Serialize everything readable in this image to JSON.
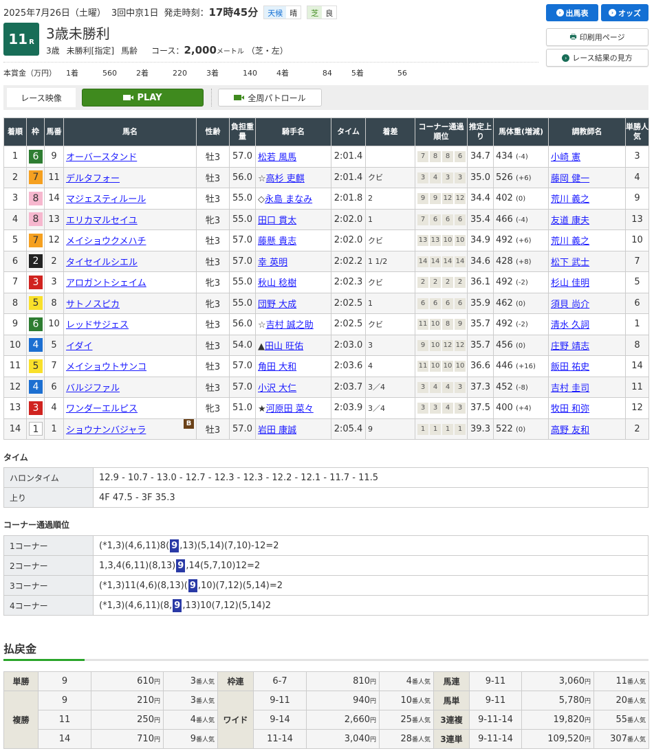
{
  "header": {
    "date": "2025年7月26日（土曜）",
    "meeting": "3回中京1日",
    "start_label": "発走時刻：",
    "start_time": "17時45分",
    "weather_label": "天候",
    "weather": "晴",
    "track_label": "芝",
    "track_cond": "良",
    "race_no": "11",
    "race_suffix": "R",
    "title": "3歳未勝利",
    "age": "3歳",
    "cond": "未勝利[指定]",
    "weight_rule": "馬齢",
    "course_label": "コース：",
    "distance": "2,000",
    "unit": "メートル",
    "course_detail": "（芝・左）"
  },
  "prize": {
    "label": "本賞金（万円）",
    "items": [
      {
        "place": "1着",
        "amount": "560"
      },
      {
        "place": "2着",
        "amount": "220"
      },
      {
        "place": "3着",
        "amount": "140"
      },
      {
        "place": "4着",
        "amount": "84"
      },
      {
        "place": "5着",
        "amount": "56"
      }
    ]
  },
  "buttons": {
    "entries": "出馬表",
    "odds": "オッズ",
    "print": "印刷用ページ",
    "howto": "レース結果の見方"
  },
  "video": {
    "label": "レース映像",
    "play": "PLAY",
    "patrol": "全周パトロール"
  },
  "frame_colors": {
    "1": [
      "#ffffff",
      "#333"
    ],
    "2": [
      "#222222",
      "#fff"
    ],
    "3": [
      "#d0231f",
      "#fff"
    ],
    "4": [
      "#1c6fd1",
      "#fff"
    ],
    "5": [
      "#f9e02a",
      "#333"
    ],
    "6": [
      "#2e7d32",
      "#fff"
    ],
    "7": [
      "#f5a020",
      "#333"
    ],
    "8": [
      "#f6b7ce",
      "#333"
    ]
  },
  "results": {
    "headers": [
      "着順",
      "枠",
      "馬番",
      "馬名",
      "性齢",
      "負担重量",
      "騎手名",
      "タイム",
      "着差",
      "コーナー通過順位",
      "推定上り",
      "馬体重(増減)",
      "調教師名",
      "単勝人気"
    ],
    "rows": [
      {
        "pos": "1",
        "frame": "6",
        "num": "9",
        "horse": "オーバースタンド",
        "sexage": "牡3",
        "wt": "57.0",
        "mark": "",
        "jockey": "松若 風馬",
        "time": "2:01.4",
        "margin": "",
        "corners": [
          "7",
          "8",
          "8",
          "6"
        ],
        "last3f": "34.7",
        "bw": "434",
        "bwd": "(-4)",
        "trainer": "小崎 憲",
        "pop": "3"
      },
      {
        "pos": "2",
        "frame": "7",
        "num": "11",
        "horse": "デルタフォー",
        "sexage": "牡3",
        "wt": "56.0",
        "mark": "☆",
        "jockey": "高杉 吏麒",
        "time": "2:01.4",
        "margin": "クビ",
        "corners": [
          "3",
          "4",
          "3",
          "3"
        ],
        "last3f": "35.0",
        "bw": "526",
        "bwd": "(+6)",
        "trainer": "藤岡 健一",
        "pop": "4"
      },
      {
        "pos": "3",
        "frame": "8",
        "num": "14",
        "horse": "マジェスティルール",
        "sexage": "牡3",
        "wt": "55.0",
        "mark": "◇",
        "jockey": "永島 まなみ",
        "time": "2:01.8",
        "margin": "2",
        "corners": [
          "9",
          "9",
          "12",
          "12"
        ],
        "last3f": "34.4",
        "bw": "402",
        "bwd": "(0)",
        "trainer": "荒川 義之",
        "pop": "9"
      },
      {
        "pos": "4",
        "frame": "8",
        "num": "13",
        "horse": "エリカマルセイユ",
        "sexage": "牝3",
        "wt": "55.0",
        "mark": "",
        "jockey": "田口 貫太",
        "time": "2:02.0",
        "margin": "1",
        "corners": [
          "7",
          "6",
          "6",
          "6"
        ],
        "last3f": "35.4",
        "bw": "466",
        "bwd": "(-4)",
        "trainer": "友道 康夫",
        "pop": "13"
      },
      {
        "pos": "5",
        "frame": "7",
        "num": "12",
        "horse": "メイショウクメハチ",
        "sexage": "牡3",
        "wt": "57.0",
        "mark": "",
        "jockey": "藤懸 貴志",
        "time": "2:02.0",
        "margin": "クビ",
        "corners": [
          "13",
          "13",
          "10",
          "10"
        ],
        "last3f": "34.9",
        "bw": "492",
        "bwd": "(+6)",
        "trainer": "荒川 義之",
        "pop": "10"
      },
      {
        "pos": "6",
        "frame": "2",
        "num": "2",
        "horse": "タイセイルシエル",
        "sexage": "牡3",
        "wt": "57.0",
        "mark": "",
        "jockey": "幸 英明",
        "time": "2:02.2",
        "margin": "1 1/2",
        "corners": [
          "14",
          "14",
          "14",
          "14"
        ],
        "last3f": "34.6",
        "bw": "428",
        "bwd": "(+8)",
        "trainer": "松下 武士",
        "pop": "7"
      },
      {
        "pos": "7",
        "frame": "3",
        "num": "3",
        "horse": "アロガントシェイム",
        "sexage": "牝3",
        "wt": "55.0",
        "mark": "",
        "jockey": "秋山 稔樹",
        "time": "2:02.3",
        "margin": "クビ",
        "corners": [
          "2",
          "2",
          "2",
          "2"
        ],
        "last3f": "36.1",
        "bw": "492",
        "bwd": "(-2)",
        "trainer": "杉山 佳明",
        "pop": "5"
      },
      {
        "pos": "8",
        "frame": "5",
        "num": "8",
        "horse": "サトノスピカ",
        "sexage": "牝3",
        "wt": "55.0",
        "mark": "",
        "jockey": "団野 大成",
        "time": "2:02.5",
        "margin": "1",
        "corners": [
          "6",
          "6",
          "6",
          "6"
        ],
        "last3f": "35.9",
        "bw": "462",
        "bwd": "(0)",
        "trainer": "須貝 尚介",
        "pop": "6"
      },
      {
        "pos": "9",
        "frame": "6",
        "num": "10",
        "horse": "レッドサジェス",
        "sexage": "牡3",
        "wt": "56.0",
        "mark": "☆",
        "jockey": "吉村 誠之助",
        "time": "2:02.5",
        "margin": "クビ",
        "corners": [
          "11",
          "10",
          "8",
          "9"
        ],
        "last3f": "35.7",
        "bw": "492",
        "bwd": "(-2)",
        "trainer": "清水 久詞",
        "pop": "1"
      },
      {
        "pos": "10",
        "frame": "4",
        "num": "5",
        "horse": "イダイ",
        "sexage": "牡3",
        "wt": "54.0",
        "mark": "▲",
        "jockey": "田山 旺佑",
        "time": "2:03.0",
        "margin": "3",
        "corners": [
          "9",
          "10",
          "12",
          "12"
        ],
        "last3f": "35.7",
        "bw": "456",
        "bwd": "(0)",
        "trainer": "庄野 靖志",
        "pop": "8"
      },
      {
        "pos": "11",
        "frame": "5",
        "num": "7",
        "horse": "メイショウトサンコ",
        "sexage": "牡3",
        "wt": "57.0",
        "mark": "",
        "jockey": "角田 大和",
        "time": "2:03.6",
        "margin": "4",
        "corners": [
          "11",
          "10",
          "10",
          "10"
        ],
        "last3f": "36.6",
        "bw": "446",
        "bwd": "(+16)",
        "trainer": "飯田 祐史",
        "pop": "14"
      },
      {
        "pos": "12",
        "frame": "4",
        "num": "6",
        "horse": "バルジファル",
        "sexage": "牡3",
        "wt": "57.0",
        "mark": "",
        "jockey": "小沢 大仁",
        "time": "2:03.7",
        "margin": "3／4",
        "corners": [
          "3",
          "4",
          "4",
          "3"
        ],
        "last3f": "37.3",
        "bw": "452",
        "bwd": "(-8)",
        "trainer": "吉村 圭司",
        "pop": "11"
      },
      {
        "pos": "13",
        "frame": "3",
        "num": "4",
        "horse": "ワンダーエルピス",
        "sexage": "牝3",
        "wt": "51.0",
        "mark": "★",
        "jockey": "河原田 菜々",
        "time": "2:03.9",
        "margin": "3／4",
        "corners": [
          "3",
          "3",
          "4",
          "3"
        ],
        "last3f": "37.5",
        "bw": "400",
        "bwd": "(+4)",
        "trainer": "牧田 和弥",
        "pop": "12"
      },
      {
        "pos": "14",
        "frame": "1",
        "num": "1",
        "horse": "ショウナンバジャラ",
        "blinker": "B",
        "sexage": "牡3",
        "wt": "57.0",
        "mark": "",
        "jockey": "岩田 康誠",
        "time": "2:05.4",
        "margin": "9",
        "corners": [
          "1",
          "1",
          "1",
          "1"
        ],
        "last3f": "39.3",
        "bw": "522",
        "bwd": "(0)",
        "trainer": "高野 友和",
        "pop": "2"
      }
    ]
  },
  "time_section": {
    "heading": "タイム",
    "rows": [
      {
        "label": "ハロンタイム",
        "value": "12.9 - 10.7 - 13.0 - 12.7 - 12.3 - 12.3 - 12.2 - 12.1 - 11.7 - 11.5"
      },
      {
        "label": "上り",
        "value": "4F 47.5 - 3F 35.3"
      }
    ]
  },
  "corner_section": {
    "heading": "コーナー通過順位",
    "rows": [
      {
        "label": "1コーナー",
        "before": "(*1,3)(4,6,11)8(",
        "hl": "9",
        "after": ",13)(5,14)(7,10)-12=2"
      },
      {
        "label": "2コーナー",
        "before": "1,3,4(6,11)(8,13)",
        "hl": "9",
        "after": ",14(5,7,10)12=2"
      },
      {
        "label": "3コーナー",
        "before": "(*1,3)11(4,6)(8,13)(",
        "hl": "9",
        "after": ",10)(7,12)(5,14)=2"
      },
      {
        "label": "4コーナー",
        "before": "(*1,3)(4,6,11)(8,",
        "hl": "9",
        "after": ",13)10(7,12)(5,14)2"
      }
    ]
  },
  "payout": {
    "heading": "払戻金",
    "yen": "円",
    "pop_suffix": "番人気",
    "tansho": {
      "label": "単勝",
      "rows": [
        {
          "num": "9",
          "amount": "610",
          "pop": "3"
        }
      ]
    },
    "fukusho": {
      "label": "複勝",
      "rows": [
        {
          "num": "9",
          "amount": "210",
          "pop": "3"
        },
        {
          "num": "11",
          "amount": "250",
          "pop": "4"
        },
        {
          "num": "14",
          "amount": "710",
          "pop": "9"
        }
      ]
    },
    "wakuren": {
      "label": "枠連",
      "rows": [
        {
          "num": "6-7",
          "amount": "810",
          "pop": "4"
        }
      ]
    },
    "wide": {
      "label": "ワイド",
      "rows": [
        {
          "num": "9-11",
          "amount": "940",
          "pop": "10"
        },
        {
          "num": "9-14",
          "amount": "2,660",
          "pop": "25"
        },
        {
          "num": "11-14",
          "amount": "3,040",
          "pop": "28"
        }
      ]
    },
    "umaren": {
      "label": "馬連",
      "rows": [
        {
          "num": "9-11",
          "amount": "3,060",
          "pop": "11"
        }
      ]
    },
    "umatan": {
      "label": "馬単",
      "rows": [
        {
          "num": "9-11",
          "amount": "5,780",
          "pop": "20"
        }
      ]
    },
    "sanrenpuku": {
      "label": "3連複",
      "rows": [
        {
          "num": "9-11-14",
          "amount": "19,820",
          "pop": "55"
        }
      ]
    },
    "sanrentan": {
      "label": "3連単",
      "rows": [
        {
          "num": "9-11-14",
          "amount": "109,520",
          "pop": "307"
        }
      ]
    }
  }
}
